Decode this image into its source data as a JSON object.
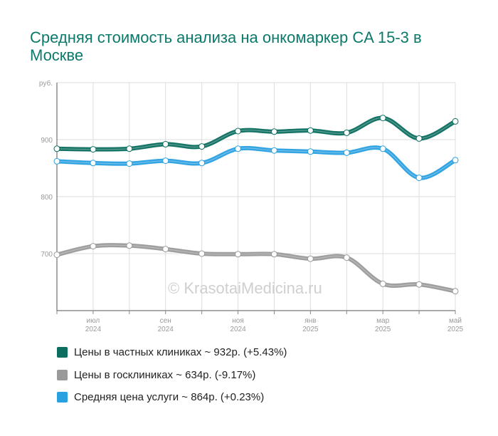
{
  "title": "Средняя стоимость анализа на онкомаркер CA 15-3 в Москве",
  "watermark": "© KrasotaiMedicina.ru",
  "chart_data": {
    "type": "line",
    "title": "Средняя стоимость анализа на онкомаркер CA 15-3 в Москве",
    "ylabel": "руб.",
    "ylim": [
      600,
      1000
    ],
    "yticks": [
      "",
      "700",
      "800",
      "900",
      "руб."
    ],
    "x_tick_labels": [
      {
        "month": "июл",
        "year": "2024"
      },
      {
        "month": "сен",
        "year": "2024"
      },
      {
        "month": "ноя",
        "year": "2024"
      },
      {
        "month": "янв",
        "year": "2025"
      },
      {
        "month": "мар",
        "year": "2025"
      },
      {
        "month": "май",
        "year": "2025"
      }
    ],
    "x": [
      "2024-06",
      "2024-07",
      "2024-08",
      "2024-09",
      "2024-10",
      "2024-11",
      "2024-12",
      "2025-01",
      "2025-02",
      "2025-03",
      "2025-04",
      "2025-05"
    ],
    "grid": true,
    "legend_position": "bottom",
    "series": [
      {
        "name": "Цены в частных клиниках",
        "color": "#0b6e5f",
        "values": [
          884,
          883,
          884,
          892,
          888,
          915,
          914,
          916,
          912,
          938,
          902,
          932
        ]
      },
      {
        "name": "Средняя цена услуги",
        "color": "#29a0e0",
        "values": [
          862,
          859,
          858,
          863,
          859,
          884,
          881,
          879,
          877,
          884,
          833,
          864
        ]
      },
      {
        "name": "Цены в госклиниках",
        "color": "#9a9a9a",
        "values": [
          698,
          713,
          714,
          708,
          700,
          699,
          699,
          691,
          693,
          647,
          646,
          634
        ]
      }
    ]
  },
  "legend": [
    {
      "label": "Цены в частных клиниках ~ 932р. (+5.43%)",
      "color": "#0b6e5f"
    },
    {
      "label": "Цены в госклиниках ~ 634р. (-9.17%)",
      "color": "#9a9a9a"
    },
    {
      "label": "Средняя цена услуги ~ 864р. (+0.23%)",
      "color": "#29a0e0"
    }
  ]
}
